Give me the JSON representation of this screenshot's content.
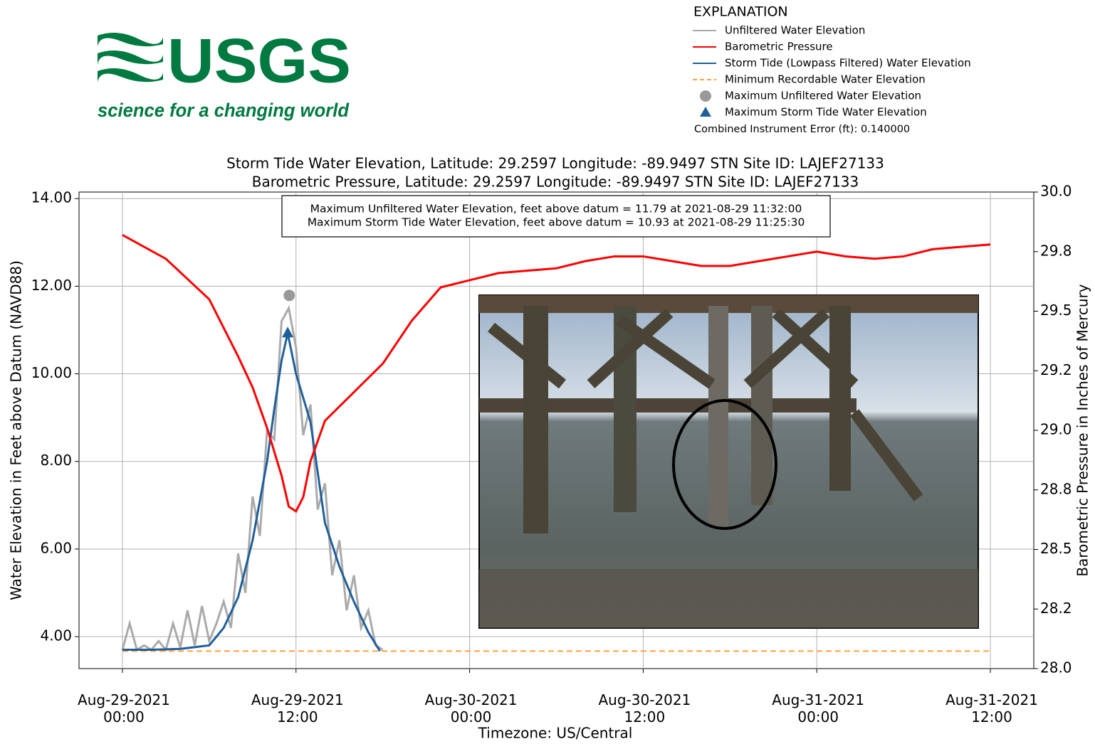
{
  "header": {
    "logo": "USGS",
    "tagline": "science for a changing world"
  },
  "chart_data": {
    "type": "line",
    "explanation_title": "EXPLANATION",
    "note": "Combined Instrument Error (ft): 0.140000",
    "title": [
      "Storm Tide Water Elevation, Latitude: 29.2597 Longitude: -89.9497 STN Site ID: LAJEF27133",
      "Barometric Pressure, Latitude: 29.2597 Longitude: -89.9497 STN Site ID: LAJEF27133"
    ],
    "annotation": [
      "Maximum Unfiltered Water Elevation, feet above datum = 11.79 at 2021-08-29 11:32:00",
      "Maximum Storm Tide Water Elevation, feet above datum = 10.93 at 2021-08-29 11:25:30"
    ],
    "xlabel": "Timezone: US/Central",
    "ylabel": "Water Elevation in Feet above Datum (NAVD88)",
    "y2label": "Barometric Pressure in Inches of Mercury",
    "grid": true,
    "xlim": [
      "2021-08-28 21:00",
      "2021-08-31 15:00"
    ],
    "xticks": [
      {
        "value": "2021-08-29 00:00",
        "label": "Aug-29-2021\n00:00"
      },
      {
        "value": "2021-08-29 12:00",
        "label": "Aug-29-2021\n12:00"
      },
      {
        "value": "2021-08-30 00:00",
        "label": "Aug-30-2021\n00:00"
      },
      {
        "value": "2021-08-30 12:00",
        "label": "Aug-30-2021\n12:00"
      },
      {
        "value": "2021-08-31 00:00",
        "label": "Aug-31-2021\n00:00"
      },
      {
        "value": "2021-08-31 12:00",
        "label": "Aug-31-2021\n12:00"
      }
    ],
    "ylim": [
      3.27,
      14.15
    ],
    "yticks": [
      {
        "value": 4,
        "label": "4.00"
      },
      {
        "value": 6,
        "label": "6.00"
      },
      {
        "value": 8,
        "label": "8.00"
      },
      {
        "value": 10,
        "label": "10.00"
      },
      {
        "value": 12,
        "label": "12.00"
      },
      {
        "value": 14,
        "label": "14.00"
      }
    ],
    "y2lim": [
      28,
      30
    ],
    "y2ticks": [
      {
        "value": 28,
        "label": "28.0"
      },
      {
        "value": 28.25,
        "label": "28.2"
      },
      {
        "value": 28.5,
        "label": "28.5"
      },
      {
        "value": 28.75,
        "label": "28.8"
      },
      {
        "value": 29,
        "label": "29.0"
      },
      {
        "value": 29.25,
        "label": "29.2"
      },
      {
        "value": 29.5,
        "label": "29.5"
      },
      {
        "value": 29.75,
        "label": "29.8"
      },
      {
        "value": 30,
        "label": "30.0"
      }
    ],
    "series": [
      {
        "name": "Unfiltered Water Elevation",
        "color": "#aaaaaa",
        "style": "line",
        "x": [
          "2021-08-29 00:00",
          "2021-08-29 00:30",
          "2021-08-29 01:00",
          "2021-08-29 01:30",
          "2021-08-29 02:00",
          "2021-08-29 02:30",
          "2021-08-29 03:00",
          "2021-08-29 03:30",
          "2021-08-29 04:00",
          "2021-08-29 04:30",
          "2021-08-29 05:00",
          "2021-08-29 05:30",
          "2021-08-29 06:00",
          "2021-08-29 06:30",
          "2021-08-29 07:00",
          "2021-08-29 07:30",
          "2021-08-29 08:00",
          "2021-08-29 08:30",
          "2021-08-29 09:00",
          "2021-08-29 09:30",
          "2021-08-29 10:00",
          "2021-08-29 10:30",
          "2021-08-29 11:00",
          "2021-08-29 11:30",
          "2021-08-29 12:00",
          "2021-08-29 12:30",
          "2021-08-29 13:00",
          "2021-08-29 13:30",
          "2021-08-29 14:00",
          "2021-08-29 14:30",
          "2021-08-29 15:00",
          "2021-08-29 15:30",
          "2021-08-29 16:00",
          "2021-08-29 16:30",
          "2021-08-29 17:00",
          "2021-08-29 17:30",
          "2021-08-29 18:00"
        ],
        "values": [
          3.7,
          4.3,
          3.7,
          3.8,
          3.7,
          3.9,
          3.7,
          4.3,
          3.75,
          4.6,
          3.8,
          4.7,
          3.9,
          4.3,
          4.8,
          4.2,
          5.9,
          5.0,
          7.2,
          6.3,
          8.7,
          8.5,
          11.2,
          11.5,
          10.6,
          8.6,
          9.3,
          6.9,
          7.5,
          5.4,
          6.2,
          4.6,
          5.4,
          4.2,
          4.6,
          3.8,
          3.7
        ]
      },
      {
        "name": "Barometric Pressure",
        "color": "#ff0000",
        "style": "line",
        "axis": "y2",
        "x": [
          "2021-08-29 00:00",
          "2021-08-29 03:00",
          "2021-08-29 06:00",
          "2021-08-29 08:00",
          "2021-08-29 09:00",
          "2021-08-29 10:00",
          "2021-08-29 11:00",
          "2021-08-29 11:30",
          "2021-08-29 12:00",
          "2021-08-29 12:30",
          "2021-08-29 13:00",
          "2021-08-29 14:00",
          "2021-08-29 16:00",
          "2021-08-29 18:00",
          "2021-08-29 20:00",
          "2021-08-29 22:00",
          "2021-08-30 00:00",
          "2021-08-30 02:00",
          "2021-08-30 04:00",
          "2021-08-30 06:00",
          "2021-08-30 08:00",
          "2021-08-30 10:00",
          "2021-08-30 12:00",
          "2021-08-30 14:00",
          "2021-08-30 16:00",
          "2021-08-30 18:00",
          "2021-08-30 20:00",
          "2021-08-30 22:00",
          "2021-08-31 00:00",
          "2021-08-31 02:00",
          "2021-08-31 04:00",
          "2021-08-31 06:00",
          "2021-08-31 08:00",
          "2021-08-31 10:00",
          "2021-08-31 12:00"
        ],
        "values": [
          29.82,
          29.72,
          29.55,
          29.31,
          29.18,
          29.01,
          28.81,
          28.68,
          28.66,
          28.72,
          28.87,
          29.04,
          29.16,
          29.28,
          29.46,
          29.6,
          29.63,
          29.66,
          29.67,
          29.68,
          29.71,
          29.73,
          29.73,
          29.71,
          29.69,
          29.69,
          29.71,
          29.73,
          29.75,
          29.73,
          29.72,
          29.73,
          29.76,
          29.77,
          29.78
        ]
      },
      {
        "name": "Storm Tide (Lowpass Filtered) Water Elevation",
        "color": "#1f5f9a",
        "style": "line",
        "x": [
          "2021-08-29 00:00",
          "2021-08-29 02:00",
          "2021-08-29 04:00",
          "2021-08-29 06:00",
          "2021-08-29 07:00",
          "2021-08-29 08:00",
          "2021-08-29 09:00",
          "2021-08-29 10:00",
          "2021-08-29 10:30",
          "2021-08-29 11:00",
          "2021-08-29 11:25:30",
          "2021-08-29 12:00",
          "2021-08-29 13:00",
          "2021-08-29 14:00",
          "2021-08-29 15:00",
          "2021-08-29 16:00",
          "2021-08-29 17:00",
          "2021-08-29 17:48"
        ],
        "values": [
          3.7,
          3.7,
          3.72,
          3.8,
          4.2,
          4.9,
          6.2,
          8.0,
          9.2,
          10.3,
          10.93,
          10.0,
          8.9,
          6.6,
          5.6,
          4.8,
          4.1,
          3.67
        ]
      },
      {
        "name": "Minimum Recordable Water Elevation",
        "color": "#ff9f40",
        "style": "dashed",
        "x": [
          "2021-08-29 00:00",
          "2021-08-31 12:00"
        ],
        "values": [
          3.67,
          3.67
        ]
      },
      {
        "name": "Maximum Unfiltered Water Elevation",
        "color": "#999999",
        "style": "circle",
        "x": [
          "2021-08-29 11:32:00"
        ],
        "values": [
          11.79
        ]
      },
      {
        "name": "Maximum Storm Tide Water Elevation",
        "color": "#1f5f9a",
        "style": "triangle",
        "x": [
          "2021-08-29 11:25:30"
        ],
        "values": [
          10.93
        ]
      }
    ]
  }
}
